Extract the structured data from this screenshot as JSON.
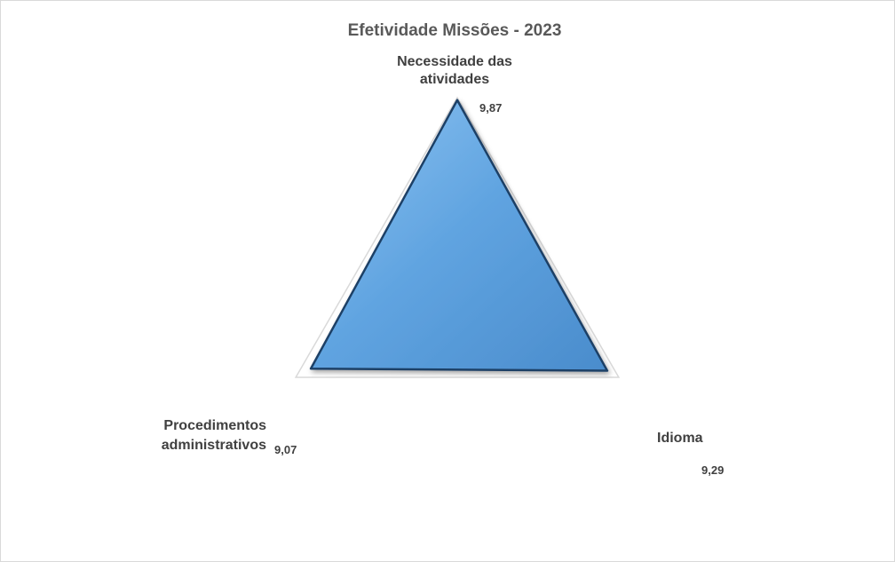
{
  "chart_data": {
    "type": "radar",
    "title": "Efetividade Missões - 2023",
    "categories": [
      "Necessidade das atividades",
      "Idioma",
      "Procedimentos administrativos"
    ],
    "category_lines": [
      [
        "Necessidade das",
        "atividades"
      ],
      [
        "Idioma"
      ],
      [
        "Procedimentos",
        "administrativos"
      ]
    ],
    "values": [
      9.87,
      9.29,
      9.07
    ],
    "value_labels": [
      "9,87",
      "9,29",
      "9,07"
    ],
    "range": [
      0,
      10
    ],
    "series_color": "#5fa3e0",
    "series_border": "#1f3f66",
    "gridline_color": "#d9d9d9",
    "grid": true,
    "legend": "none"
  }
}
